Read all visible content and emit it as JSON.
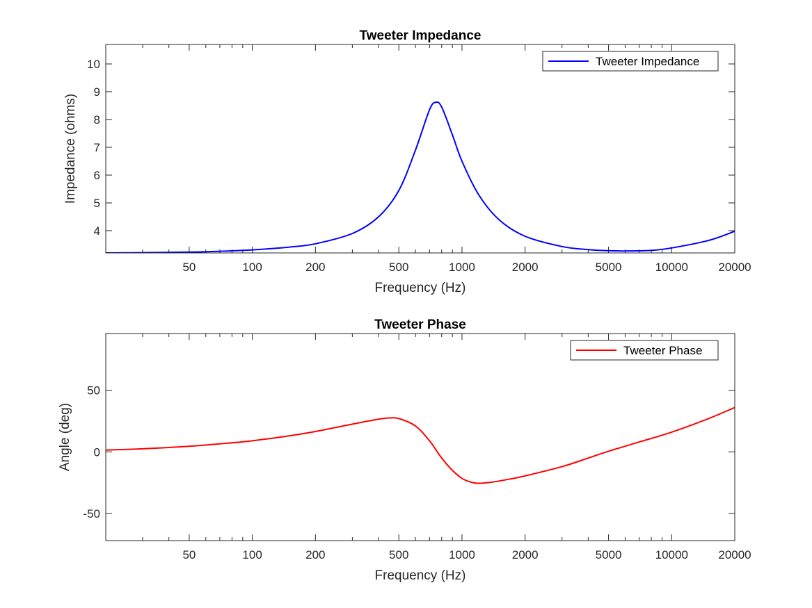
{
  "chart_data": [
    {
      "type": "line",
      "title": "Tweeter Impedance",
      "xlabel": "Frequency (Hz)",
      "ylabel": "Impedance (ohms)",
      "xscale": "log",
      "xlim": [
        20,
        20000
      ],
      "ylim": [
        3.2,
        10.7
      ],
      "xticks": [
        "50",
        "100",
        "200",
        "500",
        "1000",
        "2000",
        "5000",
        "10000",
        "20000"
      ],
      "xtick_values": [
        50,
        100,
        200,
        500,
        1000,
        2000,
        5000,
        10000,
        20000
      ],
      "yticks": [
        "4",
        "5",
        "6",
        "7",
        "8",
        "9",
        "10"
      ],
      "ytick_values": [
        4,
        5,
        6,
        7,
        8,
        9,
        10
      ],
      "grid": false,
      "legend_position": "top-right",
      "series": [
        {
          "name": "Tweeter Impedance",
          "color": "#0000ff",
          "x": [
            20,
            30,
            50,
            70,
            100,
            150,
            200,
            300,
            400,
            500,
            600,
            700,
            750,
            800,
            900,
            1000,
            1200,
            1500,
            2000,
            3000,
            4000,
            5000,
            6000,
            8000,
            10000,
            15000,
            20000
          ],
          "y": [
            3.2,
            3.21,
            3.23,
            3.26,
            3.31,
            3.41,
            3.53,
            3.9,
            4.5,
            5.45,
            6.9,
            8.35,
            8.62,
            8.45,
            7.45,
            6.5,
            5.3,
            4.4,
            3.8,
            3.43,
            3.32,
            3.28,
            3.27,
            3.29,
            3.38,
            3.65,
            3.98
          ]
        }
      ]
    },
    {
      "type": "line",
      "title": "Tweeter Phase",
      "xlabel": "Frequency (Hz)",
      "ylabel": "Angle (deg)",
      "xscale": "log",
      "xlim": [
        20,
        20000
      ],
      "ylim": [
        -72,
        96
      ],
      "xticks": [
        "50",
        "100",
        "200",
        "500",
        "1000",
        "2000",
        "5000",
        "10000",
        "20000"
      ],
      "xtick_values": [
        50,
        100,
        200,
        500,
        1000,
        2000,
        5000,
        10000,
        20000
      ],
      "yticks": [
        "-50",
        "0",
        "50"
      ],
      "ytick_values": [
        -50,
        0,
        50
      ],
      "grid": false,
      "legend_position": "top-right",
      "series": [
        {
          "name": "Tweeter Phase",
          "color": "#ff0000",
          "x": [
            20,
            30,
            50,
            70,
            100,
            150,
            200,
            300,
            400,
            450,
            500,
            600,
            700,
            800,
            900,
            1000,
            1100,
            1200,
            1400,
            1700,
            2000,
            3000,
            4000,
            5000,
            7000,
            10000,
            15000,
            20000
          ],
          "y": [
            1.5,
            2.5,
            4.5,
            6.5,
            9,
            13,
            16.5,
            22.5,
            26.5,
            27.5,
            27,
            21,
            9,
            -5,
            -15,
            -21.5,
            -24.5,
            -25.5,
            -24.5,
            -22,
            -19.5,
            -12,
            -5,
            0.5,
            8,
            16,
            27,
            36
          ]
        }
      ]
    }
  ]
}
